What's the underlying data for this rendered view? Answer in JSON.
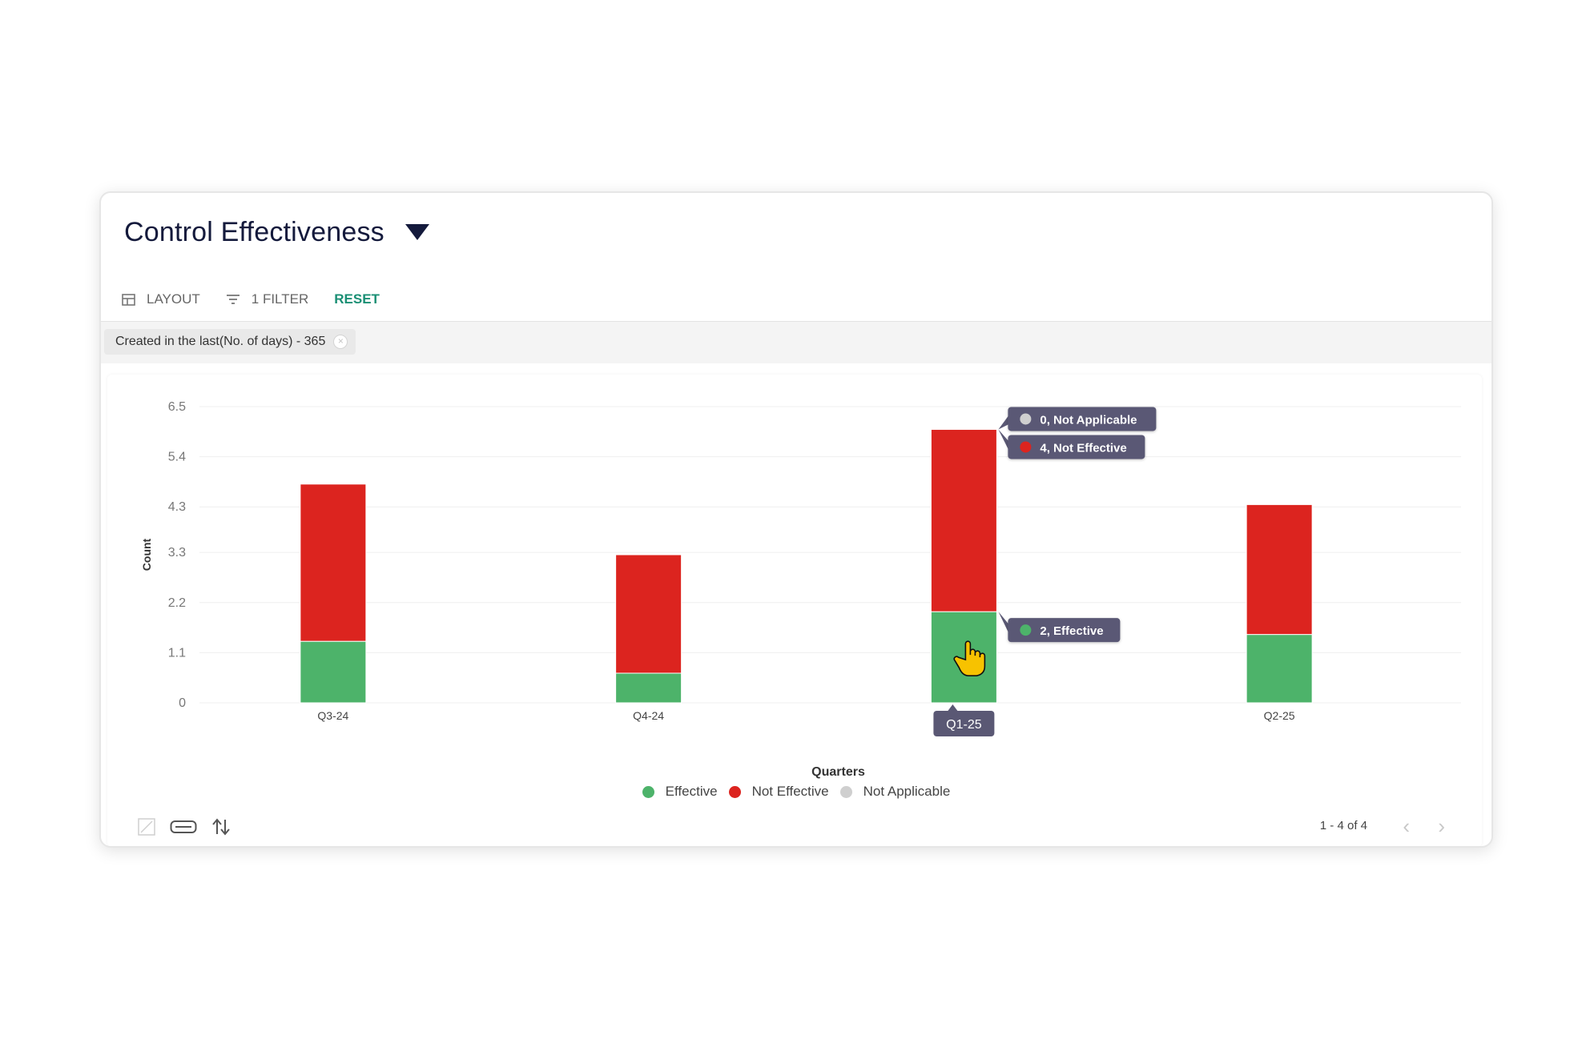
{
  "header": {
    "title": "Control Effectiveness"
  },
  "toolbar": {
    "layout_label": "LAYOUT",
    "filter_label": "1 FILTER",
    "reset_label": "RESET"
  },
  "filters": {
    "chip_label": "Created in the last(No. of days) - 365"
  },
  "colors": {
    "effective": "#4db36a",
    "not_effective": "#dc241f",
    "not_applicable": "#cfcfcf",
    "tooltip_bg": "#5a5874",
    "accent": "#1a8f74"
  },
  "chart_data": {
    "type": "bar",
    "stacked": true,
    "xlabel": "Quarters",
    "ylabel": "Count",
    "categories": [
      "Q3-24",
      "Q4-24",
      "Q1-25",
      "Q2-25"
    ],
    "yticks": [
      "0",
      "1.1",
      "2.2",
      "3.3",
      "4.3",
      "5.4",
      "6.5"
    ],
    "ylim": [
      0,
      6.5
    ],
    "series": [
      {
        "name": "Effective",
        "values": [
          1.35,
          0.65,
          2,
          1.5
        ]
      },
      {
        "name": "Not Effective",
        "values": [
          3.45,
          2.6,
          4,
          2.85
        ]
      },
      {
        "name": "Not Applicable",
        "values": [
          0,
          0,
          0,
          0
        ]
      }
    ],
    "grid": true,
    "legend": "bottom-center",
    "hover": {
      "category_index": 2,
      "category_label": "Q1-25",
      "tooltips": [
        "0, Not Applicable",
        "4, Not Effective",
        "2, Effective"
      ]
    }
  },
  "legend": {
    "items": [
      "Effective",
      "Not Effective",
      "Not Applicable"
    ]
  },
  "footer": {
    "pager_text": "1 - 4 of 4"
  }
}
